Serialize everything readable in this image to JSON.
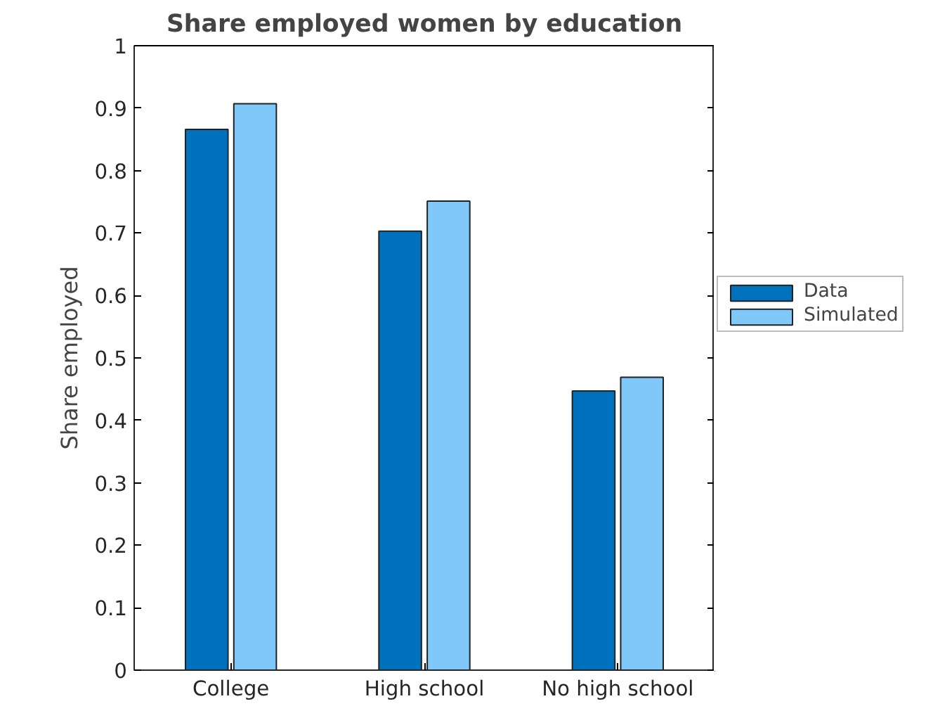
{
  "chart_data": {
    "type": "bar",
    "title": "Share employed women by education",
    "ylabel": "Share employed",
    "categories": [
      "College",
      "High school",
      "No high school"
    ],
    "series": [
      {
        "name": "Data",
        "color": "#0072bd",
        "values": [
          0.866,
          0.703,
          0.447
        ]
      },
      {
        "name": "Simulated",
        "color": "#80c8fa",
        "values": [
          0.907,
          0.751,
          0.469
        ]
      }
    ],
    "ylim": [
      0,
      1
    ],
    "yticks": [
      0,
      0.1,
      0.2,
      0.3,
      0.4,
      0.5,
      0.6,
      0.7,
      0.8,
      0.9,
      1
    ],
    "grid": false,
    "legend": "right"
  }
}
